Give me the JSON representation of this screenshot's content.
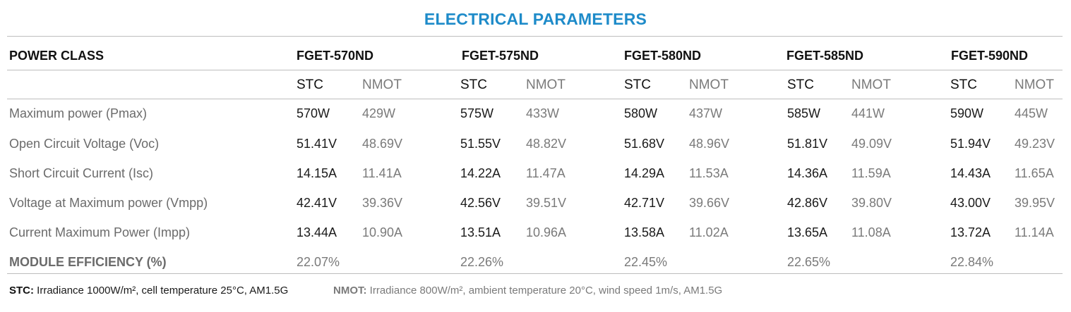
{
  "title": "ELECTRICAL PARAMETERS",
  "power_class_label": "POWER CLASS",
  "models": [
    "FGET-570ND",
    "FGET-575ND",
    "FGET-580ND",
    "FGET-585ND",
    "FGET-590ND"
  ],
  "condition_headers": {
    "stc": "STC",
    "nmot": "NMOT"
  },
  "rows": [
    {
      "label": "Maximum power (Pmax)",
      "values": [
        [
          "570W",
          "429W"
        ],
        [
          "575W",
          "433W"
        ],
        [
          "580W",
          "437W"
        ],
        [
          "585W",
          "441W"
        ],
        [
          "590W",
          "445W"
        ]
      ]
    },
    {
      "label": "Open Circuit Voltage (Voc)",
      "values": [
        [
          "51.41V",
          "48.69V"
        ],
        [
          "51.55V",
          "48.82V"
        ],
        [
          "51.68V",
          "48.96V"
        ],
        [
          "51.81V",
          "49.09V"
        ],
        [
          "51.94V",
          "49.23V"
        ]
      ]
    },
    {
      "label": "Short Circuit Current (Isc)",
      "values": [
        [
          "14.15A",
          "11.41A"
        ],
        [
          "14.22A",
          "11.47A"
        ],
        [
          "14.29A",
          "11.53A"
        ],
        [
          "14.36A",
          "11.59A"
        ],
        [
          "14.43A",
          "11.65A"
        ]
      ]
    },
    {
      "label": "Voltage at Maximum power (Vmpp)",
      "values": [
        [
          "42.41V",
          "39.36V"
        ],
        [
          "42.56V",
          "39.51V"
        ],
        [
          "42.71V",
          "39.66V"
        ],
        [
          "42.86V",
          "39.80V"
        ],
        [
          "43.00V",
          "39.95V"
        ]
      ]
    },
    {
      "label": "Current Maximum Power (Impp)",
      "values": [
        [
          "13.44A",
          "10.90A"
        ],
        [
          "13.51A",
          "10.96A"
        ],
        [
          "13.58A",
          "11.02A"
        ],
        [
          "13.65A",
          "11.08A"
        ],
        [
          "13.72A",
          "11.14A"
        ]
      ]
    }
  ],
  "efficiency": {
    "label": "MODULE EFFICIENCY (%)",
    "values": [
      "22.07%",
      "22.26%",
      "22.45%",
      "22.65%",
      "22.84%"
    ]
  },
  "footnotes": {
    "stc_key": "STC:",
    "stc_text": "Irradiance 1000W/m², cell temperature 25°C, AM1.5G",
    "nmot_key": "NMOT:",
    "nmot_text": "Irradiance 800W/m², ambient temperature 20°C, wind speed 1m/s, AM1.5G"
  }
}
